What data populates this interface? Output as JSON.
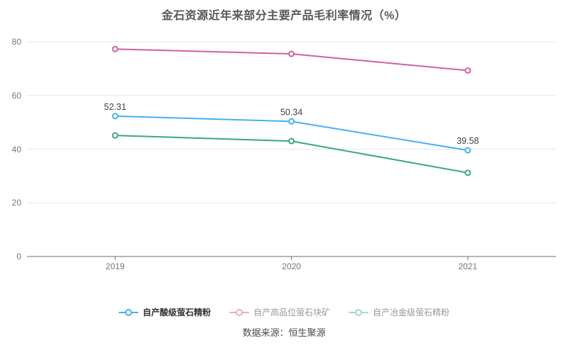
{
  "title": "金石资源近年来部分主要产品毛利率情况（%）",
  "source": "数据来源：恒生聚源",
  "colors": {
    "grid": "#e2e7f1",
    "axis": "#6e7079",
    "tick_label": "#74777d",
    "data_label": "#404040",
    "legend_active_text": "#333333",
    "legend_muted_text": "#999999",
    "series_blue": "#47aff2",
    "series_pink": "#d2609f",
    "series_green": "#3ca48b"
  },
  "chart_data": {
    "type": "line",
    "title": "金石资源近年来部分主要产品毛利率情况（%）",
    "categories": [
      "2019",
      "2020",
      "2021"
    ],
    "series": [
      {
        "name": "自产酸级萤石精粉",
        "color": "#47aff2",
        "values": [
          52.31,
          50.34,
          39.58
        ],
        "labels": [
          "52.31",
          "50.34",
          "39.58"
        ],
        "show_labels": true,
        "legend_marker_color": "#47aff2",
        "legend_text_color": "#333333",
        "legend_bold": true
      },
      {
        "name": "自产高品位萤石块矿",
        "color": "#d2609f",
        "values": [
          77.3,
          75.5,
          69.3
        ],
        "labels": [],
        "show_labels": false,
        "legend_marker_color": "#efaacb",
        "legend_text_color": "#999999",
        "legend_bold": false
      },
      {
        "name": "自产冶金级萤石精粉",
        "color": "#3ca48b",
        "values": [
          45.1,
          43.0,
          31.2
        ],
        "labels": [],
        "show_labels": false,
        "legend_marker_color": "#a3daca",
        "legend_text_color": "#999999",
        "legend_bold": false
      }
    ],
    "xlabel": "",
    "ylabel": "",
    "ylim": [
      0,
      80
    ],
    "yticks": [
      0,
      20,
      40,
      60,
      80
    ],
    "grid": true,
    "legend_position": "bottom"
  }
}
